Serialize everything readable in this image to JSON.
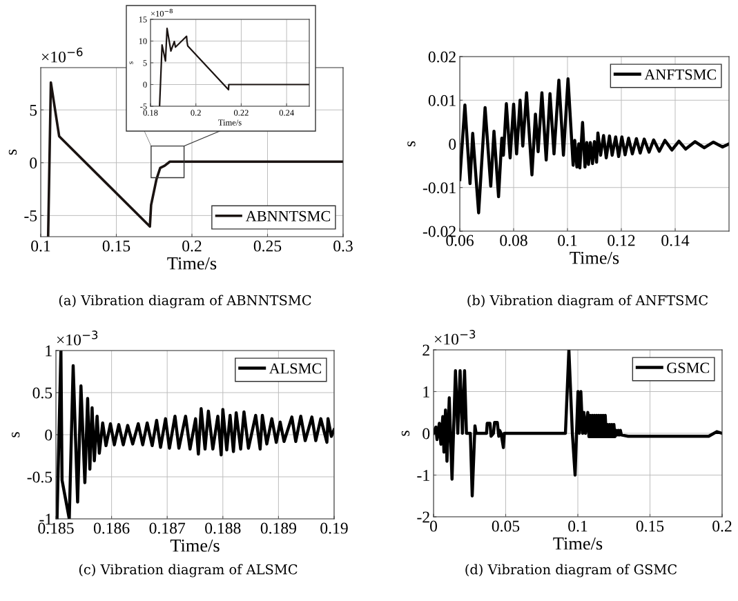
{
  "chart_data": [
    {
      "type": "line",
      "title": "(a) Vibration diagram of ABNNTSMC",
      "xlabel": "Time/s",
      "ylabel": "s",
      "annotations": [
        "×10$^{−6}$"
      ],
      "x": [
        0.1049,
        0.1067,
        0.1122,
        0.1722,
        0.173,
        0.1765,
        0.179,
        0.182,
        0.1854,
        0.3
      ],
      "series": [
        {
          "name": "ABNNTSMC",
          "color": "#1a1311",
          "values": [
            -7,
            7.6,
            2.5,
            -6.04,
            -4.0,
            -1.6,
            -0.5,
            -0.28,
            0.1,
            0.1
          ]
        }
      ],
      "xlim": [
        0.1,
        0.3
      ],
      "xticks": [
        0.1,
        0.15,
        0.2,
        0.25,
        0.3
      ],
      "ylim": [
        -7,
        9
      ],
      "yticks": [
        -5,
        0,
        5
      ],
      "grid": true,
      "legend": "bottom right"
    },
    {
      "type": "line",
      "xlabel": "Time/s",
      "ylabel": "s",
      "annotations": [
        "×10$^{−8}$"
      ],
      "x": [
        0.184,
        0.1851,
        0.1866,
        0.1873,
        0.189,
        0.1905,
        0.191,
        0.1959,
        0.1961,
        0.1964,
        0.2144,
        0.2145,
        0.25
      ],
      "series": [
        {
          "color": "#1a1311",
          "values": [
            -5,
            9.1,
            5.4,
            12.9,
            7.7,
            9.9,
            8.6,
            11.1,
            9.9,
            8.9,
            -1.2,
            0,
            0
          ]
        }
      ],
      "xlim": [
        0.18,
        0.25
      ],
      "xticks": [
        0.18,
        0.2,
        0.22,
        0.24
      ],
      "ylim": [
        -5,
        15
      ],
      "yticks": [
        -5,
        0,
        5,
        10,
        15
      ],
      "grid": true
    },
    {
      "type": "line",
      "title": "(b) Vibration diagram of ANFTSMC",
      "xlabel": "Time/s",
      "ylabel": "s",
      "x": [
        0.06,
        0.0619,
        0.0638,
        0.0648,
        0.067,
        0.0694,
        0.0715,
        0.0727,
        0.0744,
        0.0756,
        0.0762,
        0.0773,
        0.0787,
        0.08,
        0.0811,
        0.0824,
        0.0834,
        0.0848,
        0.0868,
        0.0881,
        0.0891,
        0.0905,
        0.0921,
        0.0935,
        0.095,
        0.0968,
        0.0985,
        0.1002,
        0.1021,
        0.1027,
        0.1035,
        0.1042,
        0.1046,
        0.1056,
        0.1065,
        0.1072,
        0.1078,
        0.1085,
        0.1093,
        0.11,
        0.1108,
        0.1113,
        0.1123,
        0.1134,
        0.1144,
        0.1156,
        0.1166,
        0.1179,
        0.119,
        0.1202,
        0.1214,
        0.1227,
        0.1241,
        0.1256,
        0.127,
        0.1285,
        0.1303,
        0.132,
        0.1341,
        0.1362,
        0.1388,
        0.1414,
        0.1439,
        0.1474,
        0.1508,
        0.1542,
        0.1576,
        0.16
      ],
      "series": [
        {
          "name": "ANFTSMC",
          "color": "#000000",
          "values": [
            -0.0082,
            0.0089,
            -0.0091,
            0.0024,
            -0.0158,
            0.0083,
            -0.0097,
            0.0029,
            -0.0121,
            0.0013,
            -0.0026,
            0.0092,
            -0.0032,
            0.0091,
            -0.0023,
            0.01,
            -0.0005,
            0.0117,
            -0.0071,
            0.0068,
            -0.0018,
            0.0117,
            -0.0037,
            0.0115,
            -0.0023,
            0.0146,
            -0.0026,
            0.0149,
            -0.0049,
            0.0008,
            -0.0053,
            0,
            -0.0055,
            0.0049,
            -0.0053,
            0.0003,
            -0.0047,
            0.0003,
            -0.0045,
            0.0005,
            -0.0042,
            0.0025,
            -0.0026,
            0.0019,
            -0.0032,
            0.0018,
            -0.0026,
            0.0016,
            -0.0029,
            0.0016,
            -0.0025,
            0.0013,
            -0.0023,
            0.0012,
            -0.0021,
            0.0011,
            -0.0019,
            0.0009,
            -0.0017,
            0.0008,
            -0.0014,
            0.0006,
            -0.0012,
            0.0005,
            -0.0009,
            0.0004,
            -0.0007,
            0
          ]
        }
      ],
      "xlim": [
        0.06,
        0.16
      ],
      "xticks": [
        0.06,
        0.08,
        0.1,
        0.12,
        0.14
      ],
      "ylim": [
        -0.02,
        0.02
      ],
      "yticks": [
        -0.02,
        -0.01,
        0,
        0.01,
        0.02
      ],
      "grid": true,
      "legend": "top right"
    },
    {
      "type": "line",
      "title": "(c) Vibration diagram of ALSMC",
      "xlabel": "Time/s",
      "ylabel": "s",
      "annotations": [
        "×10$^{−3}$"
      ],
      "x": [
        0.18502,
        0.18509,
        0.18511,
        0.18524,
        0.18531,
        0.18539,
        0.18545,
        0.18552,
        0.18557,
        0.18561,
        0.18565,
        0.18569,
        0.18574,
        0.18578,
        0.18584,
        0.1859,
        0.18598,
        0.18605,
        0.18613,
        0.18621,
        0.18629,
        0.18638,
        0.18648,
        0.18656,
        0.18664,
        0.18673,
        0.18681,
        0.18688,
        0.18697,
        0.18704,
        0.18714,
        0.18721,
        0.18733,
        0.18741,
        0.18751,
        0.18756,
        0.18761,
        0.18768,
        0.18774,
        0.18782,
        0.18791,
        0.18797,
        0.188,
        0.18807,
        0.18813,
        0.18819,
        0.18824,
        0.18832,
        0.18838,
        0.18846,
        0.18859,
        0.18867,
        0.18871,
        0.18879,
        0.18888,
        0.18896,
        0.18903,
        0.1891,
        0.18924,
        0.18931,
        0.1894,
        0.18948,
        0.1896,
        0.18967,
        0.18976,
        0.18987,
        0.18989,
        0.18995,
        0.19
      ],
      "series": [
        {
          "name": "ALSMC",
          "color": "#000000",
          "values": [
            -1,
            1,
            -0.54,
            -1,
            0.82,
            -0.8,
            0.58,
            -0.57,
            0.43,
            -0.41,
            0.32,
            -0.31,
            0.22,
            -0.22,
            0.14,
            -0.13,
            0.13,
            -0.12,
            0.12,
            -0.12,
            0.11,
            -0.11,
            0.13,
            -0.12,
            0.14,
            -0.13,
            0.17,
            -0.15,
            0.19,
            -0.16,
            0.22,
            -0.16,
            0.22,
            -0.17,
            0.19,
            -0.23,
            0.31,
            -0.17,
            0.28,
            -0.17,
            0.22,
            -0.24,
            0.3,
            -0.18,
            0.23,
            -0.2,
            0.26,
            -0.17,
            0.27,
            -0.16,
            0.23,
            -0.17,
            0.23,
            -0.11,
            0.19,
            -0.09,
            0.15,
            -0.08,
            0.21,
            -0.08,
            0.22,
            -0.07,
            0.21,
            -0.07,
            0.19,
            -0.09,
            0.19,
            -0.02,
            0.06
          ]
        }
      ],
      "xlim": [
        0.185,
        0.19
      ],
      "xticks": [
        0.185,
        0.186,
        0.187,
        0.188,
        0.189,
        0.19
      ],
      "ylim": [
        -1,
        1
      ],
      "yticks": [
        -1,
        -0.5,
        0,
        0.5,
        1
      ],
      "grid": true,
      "legend": "top right"
    },
    {
      "type": "line",
      "title": "(d) Vibration diagram of GSMC",
      "xlabel": "Time/s",
      "ylabel": "s",
      "annotations": [
        "×10$^{−3}$"
      ],
      "x": [
        0,
        0.0016,
        0.0024,
        0.004,
        0.0051,
        0.0064,
        0.0072,
        0.0083,
        0.0093,
        0.0109,
        0.0128,
        0.0152,
        0.0168,
        0.0184,
        0.02,
        0.0215,
        0.0228,
        0.0255,
        0.0268,
        0.0287,
        0.0295,
        0.0367,
        0.0372,
        0.0391,
        0.0399,
        0.0415,
        0.0423,
        0.0442,
        0.0452,
        0.0458,
        0.0468,
        0.0484,
        0.049,
        0.0914,
        0.0938,
        0.0962,
        0.0981,
        0.1001,
        0.101,
        0.1021,
        0.1033,
        0.1042,
        0.1053,
        0.1069,
        0.1077,
        0.1085,
        0.1092,
        0.11,
        0.1107,
        0.1115,
        0.1122,
        0.113,
        0.1137,
        0.1145,
        0.1152,
        0.116,
        0.1167,
        0.1175,
        0.1182,
        0.119,
        0.1197,
        0.1205,
        0.1212,
        0.122,
        0.1227,
        0.1235,
        0.1242,
        0.125,
        0.1257,
        0.1265,
        0.1272,
        0.128,
        0.1287,
        0.1295,
        0.1302,
        0.1349,
        0.1907,
        0.1963,
        0.2
      ],
      "series": [
        {
          "name": "GSMC",
          "color": "#000000",
          "values": [
            0,
            0.15,
            -0.15,
            0.24,
            -0.26,
            0.4,
            -0.45,
            0.56,
            -0.67,
            0.85,
            -1.1,
            1.5,
            0,
            1.5,
            0,
            1.5,
            0,
            0,
            -1.5,
            0.18,
            0,
            0,
            0.24,
            0.24,
            -0.07,
            0,
            0.26,
            0.26,
            -0.07,
            0.07,
            0,
            -0.34,
            0,
            0,
            2,
            0,
            -1,
            1,
            0,
            1,
            0,
            0.5,
            0,
            0.5,
            -0.08,
            0.43,
            -0.08,
            0.43,
            -0.08,
            0.43,
            -0.08,
            0.43,
            -0.08,
            0.43,
            -0.08,
            0.43,
            -0.08,
            0.43,
            -0.08,
            0.43,
            -0.08,
            0.21,
            -0.08,
            0.21,
            -0.08,
            0.21,
            -0.08,
            0.21,
            -0.08,
            0.07,
            -0.04,
            0.07,
            -0.04,
            0.07,
            -0.04,
            -0.07,
            -0.07,
            0.04,
            0
          ]
        }
      ],
      "xlim": [
        0,
        0.2
      ],
      "xticks": [
        0,
        0.05,
        0.1,
        0.15,
        0.2
      ],
      "ylim": [
        -2,
        2
      ],
      "yticks": [
        -2,
        -1,
        0,
        1,
        2
      ],
      "grid": true,
      "legend": "top right"
    }
  ]
}
